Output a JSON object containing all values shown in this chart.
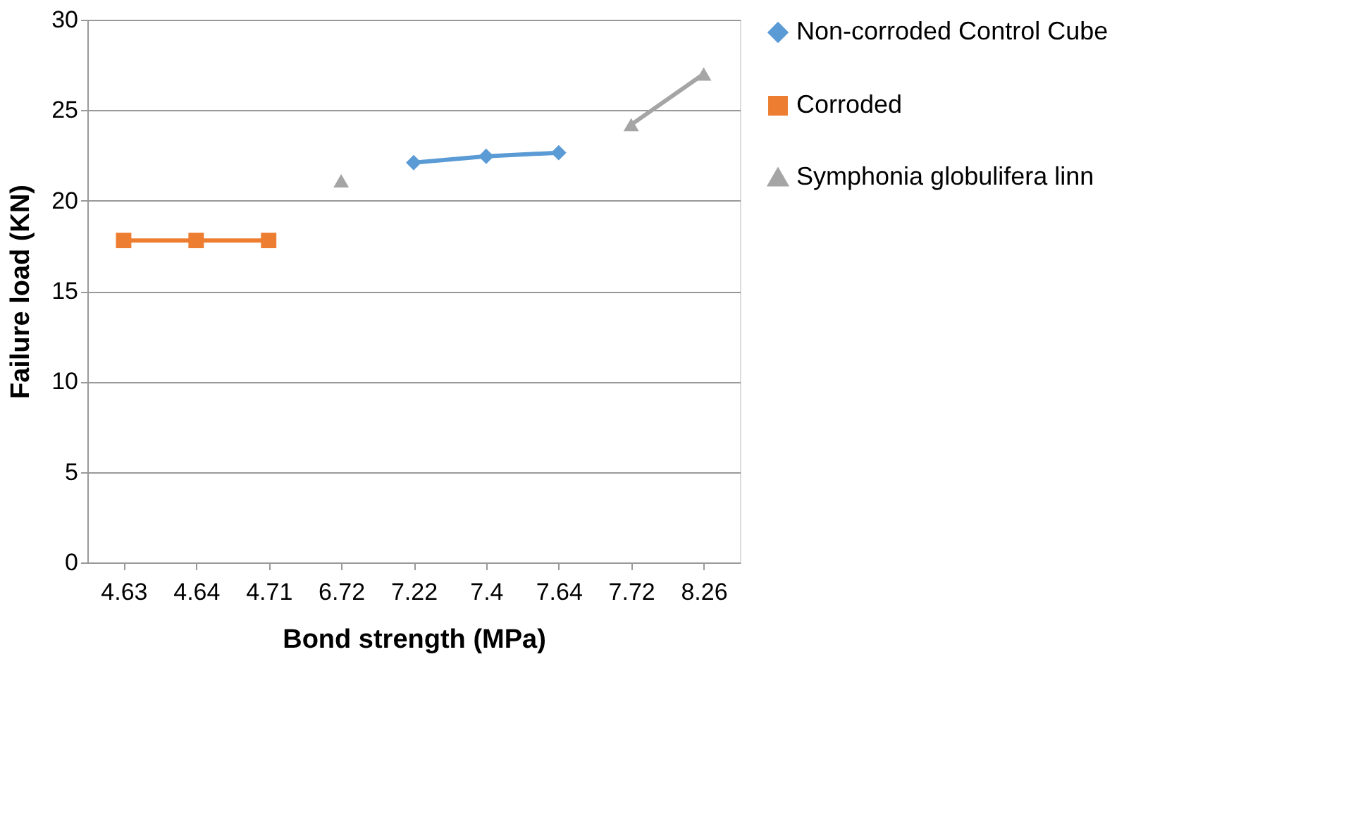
{
  "chart_data": {
    "type": "line",
    "xlabel": "Bond strength (MPa)",
    "ylabel": "Failure load (KN)",
    "categories": [
      "4.63",
      "4.64",
      "4.71",
      "6.72",
      "7.22",
      "7.4",
      "7.64",
      "7.72",
      "8.26"
    ],
    "series": [
      {
        "name": "Non-corroded Control Cube",
        "color": "#5b9bd5",
        "marker": "diamond",
        "values": [
          null,
          null,
          null,
          null,
          22.1,
          22.45,
          22.65,
          null,
          null
        ]
      },
      {
        "name": "Corroded",
        "color": "#ed7d31",
        "marker": "square",
        "values": [
          17.8,
          17.8,
          17.8,
          null,
          null,
          null,
          null,
          null,
          null
        ]
      },
      {
        "name": "Symphonia globulifera linn",
        "color": "#a5a5a5",
        "marker": "triangle",
        "values": [
          null,
          null,
          null,
          21.1,
          null,
          null,
          null,
          24.2,
          27.0
        ]
      }
    ],
    "ylim": [
      0,
      30
    ],
    "yticks": [
      0,
      5,
      10,
      15,
      20,
      25,
      30
    ],
    "grid": "y",
    "legend": "right"
  }
}
